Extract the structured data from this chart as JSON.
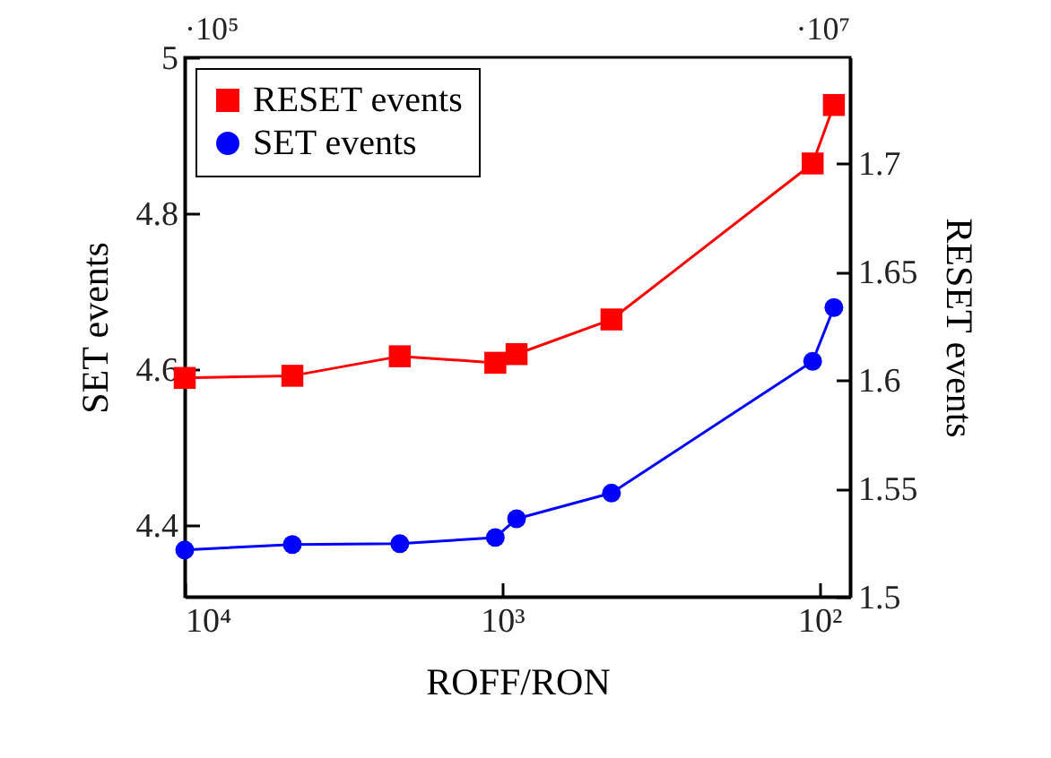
{
  "chart_data": {
    "type": "line",
    "xlabel": "ROFF/RON",
    "ylabel": "SET events",
    "y2label": "RESET events",
    "log": "x",
    "grid": false,
    "legend": "top left",
    "xlim": [
      10000,
      80
    ],
    "xticks": [
      {
        "value": 10000,
        "label": "10⁴"
      },
      {
        "value": 1000,
        "label": "10³"
      },
      {
        "value": 100,
        "label": "10²"
      }
    ],
    "ylim": [
      4.308,
      5.0
    ],
    "yticks": [
      4.4,
      4.6,
      4.8,
      5
    ],
    "y2lim": [
      1.5,
      1.749
    ],
    "y2ticks": [
      1.5,
      1.55,
      1.6,
      1.65,
      1.7
    ],
    "x": [
      10000,
      4580,
      2100,
      1050,
      900,
      452,
      105,
      90
    ],
    "series": [
      {
        "name": "RESET events",
        "color": "#ff0000",
        "axis": "y2",
        "marker": "square",
        "values": [
          1.601,
          1.602,
          1.611,
          1.608,
          1.612,
          1.628,
          1.7,
          1.727
        ]
      },
      {
        "name": "SET events",
        "color": "#0000ff",
        "marker": "circle",
        "values": [
          4.368,
          4.375,
          4.376,
          4.384,
          4.408,
          4.441,
          4.61,
          4.679
        ]
      }
    ],
    "annotations": [
      "·10⁵",
      "·10⁷"
    ]
  }
}
